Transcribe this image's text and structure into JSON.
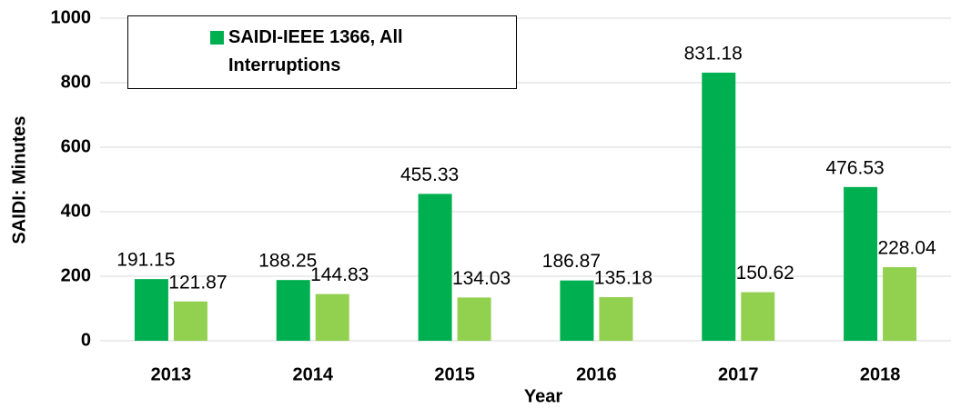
{
  "chart_data": {
    "type": "bar",
    "categories": [
      "2013",
      "2014",
      "2015",
      "2016",
      "2017",
      "2018"
    ],
    "series": [
      {
        "name": "SAIDI-IEEE 1366, All Interruptions",
        "color": "#00b050",
        "values": [
          191.15,
          188.25,
          455.33,
          186.87,
          831.18,
          476.53
        ]
      },
      {
        "color": "#92d050",
        "values": [
          121.87,
          144.83,
          134.03,
          135.18,
          150.62,
          228.04
        ]
      }
    ],
    "x_label": "Year",
    "y_label": "SAIDI:  Minutes",
    "ylim": [
      0,
      1000
    ],
    "yticks": [
      0,
      200,
      400,
      600,
      800,
      1000
    ],
    "grid": true
  }
}
